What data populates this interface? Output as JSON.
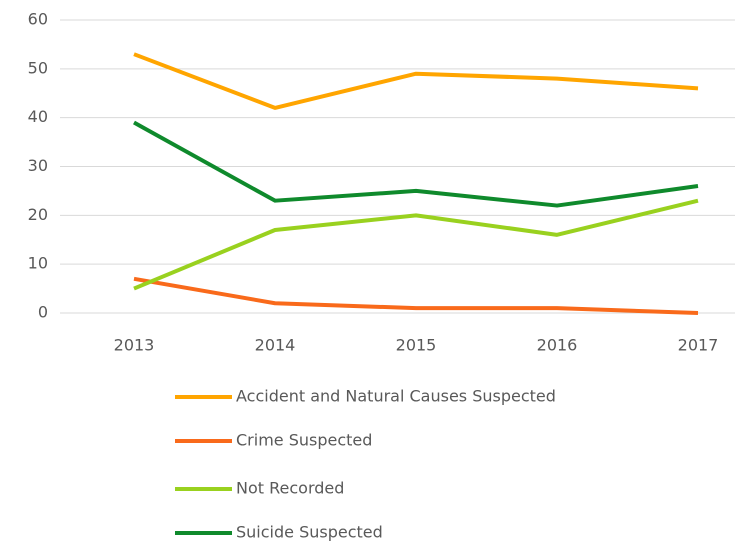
{
  "chart_data": {
    "type": "line",
    "categories": [
      "2013",
      "2014",
      "2015",
      "2016",
      "2017"
    ],
    "series": [
      {
        "name": "Accident and Natural Causes Suspected",
        "color": "#ffa500",
        "values": [
          53,
          42,
          49,
          48,
          46
        ]
      },
      {
        "name": "Crime Suspected",
        "color": "#f96a1b",
        "values": [
          7,
          2,
          1,
          1,
          0
        ]
      },
      {
        "name": "Not Recorded",
        "color": "#99d11f",
        "values": [
          5,
          17,
          20,
          16,
          23
        ]
      },
      {
        "name": "Suicide Suspected",
        "color": "#0f8a2c",
        "values": [
          39,
          23,
          25,
          22,
          26
        ]
      }
    ],
    "ylim": [
      0,
      60
    ],
    "yticks": [
      0,
      10,
      20,
      30,
      40,
      50,
      60
    ],
    "grid": true,
    "legend": "bottom"
  }
}
